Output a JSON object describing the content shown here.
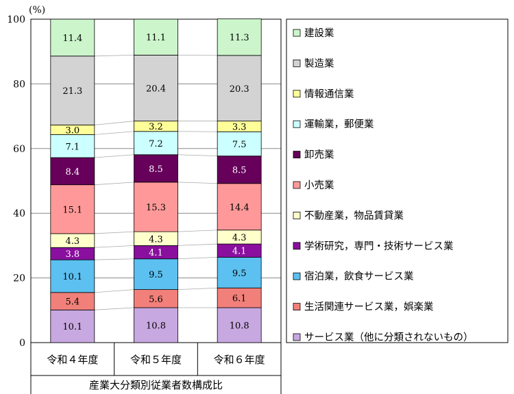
{
  "chart_data": {
    "type": "bar",
    "stacked": true,
    "ylabel": "(%)",
    "xlabel": "産業大分類別従業者数構成比",
    "ylim": [
      0,
      100
    ],
    "yticks": [
      0,
      20,
      40,
      60,
      80,
      100
    ],
    "grid": true,
    "legend_position": "right",
    "categories": [
      "令和４年度",
      "令和５年度",
      "令和６年度"
    ],
    "series": [
      {
        "name": "サービス業（他に分類されないもの）",
        "color": "#c8a8e0",
        "label_color": "#000000",
        "values": [
          10.1,
          10.8,
          10.8
        ]
      },
      {
        "name": "生活関連サービス業，娯楽業",
        "color": "#f2807a",
        "label_color": "#000000",
        "values": [
          5.4,
          5.6,
          6.1
        ]
      },
      {
        "name": "宿泊業，飲食サービス業",
        "color": "#5cc0f0",
        "label_color": "#000000",
        "values": [
          10.1,
          9.5,
          9.5
        ]
      },
      {
        "name": "学術研究，専門・技術サービス業",
        "color": "#8a0f9e",
        "label_color": "#ffffff",
        "values": [
          3.8,
          4.1,
          4.1
        ]
      },
      {
        "name": "不動産業，物品賃貸業",
        "color": "#ffffcc",
        "label_color": "#000000",
        "values": [
          4.3,
          4.3,
          4.3
        ]
      },
      {
        "name": "小売業",
        "color": "#ff9999",
        "label_color": "#000000",
        "values": [
          15.1,
          15.3,
          14.4
        ]
      },
      {
        "name": "卸売業",
        "color": "#66005a",
        "label_color": "#ffffff",
        "values": [
          8.4,
          8.5,
          8.5
        ]
      },
      {
        "name": "運輸業，郵便業",
        "color": "#ccffff",
        "label_color": "#000000",
        "values": [
          7.1,
          7.2,
          7.5
        ]
      },
      {
        "name": "情報通信業",
        "color": "#ffff99",
        "label_color": "#000000",
        "values": [
          3.0,
          3.2,
          3.3
        ]
      },
      {
        "name": "製造業",
        "color": "#d3d3d3",
        "label_color": "#000000",
        "values": [
          21.3,
          20.4,
          20.3
        ]
      },
      {
        "name": "建設業",
        "color": "#ccf5cc",
        "label_color": "#000000",
        "values": [
          11.4,
          11.1,
          11.3
        ]
      }
    ]
  }
}
